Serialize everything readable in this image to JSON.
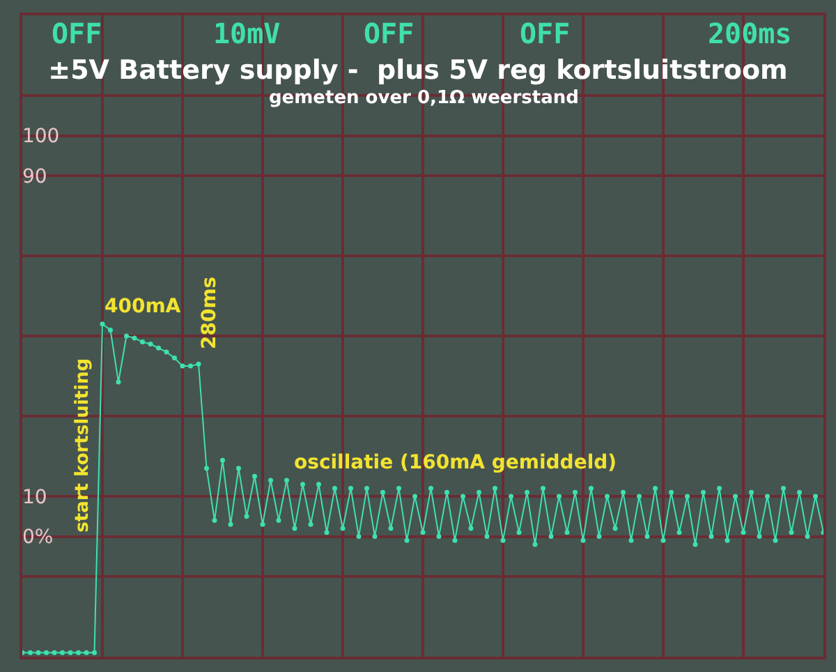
{
  "chart_data": {
    "type": "line",
    "title": "±5V Battery supply -  plus 5V reg kortsluitstroom",
    "subtitle": "gemeten over 0,1Ω weerstand",
    "annotations": [
      "OFF",
      "10mV",
      "OFF",
      "OFF",
      "200ms",
      "400mA",
      "280ms",
      "start kortsluiting",
      "oscillatie (160mA gemiddeld)"
    ],
    "categories": [
      null,
      null,
      null,
      null,
      null,
      null,
      null,
      null,
      null,
      null,
      null,
      null,
      null,
      null,
      null,
      null,
      null,
      null,
      null,
      null,
      null,
      null,
      null,
      null,
      null,
      null,
      null,
      null,
      null,
      null,
      null,
      null,
      null,
      null,
      null,
      null,
      null,
      null,
      null,
      null,
      null,
      null,
      null,
      null,
      null,
      null,
      null,
      null,
      null,
      null,
      null,
      null,
      null,
      null,
      null,
      null,
      null,
      null,
      null,
      null,
      null,
      null,
      null,
      null,
      null,
      null,
      null,
      null,
      null,
      null,
      null,
      null,
      null,
      null,
      null,
      null,
      null,
      null,
      null,
      null,
      null,
      null,
      null,
      null,
      null,
      null,
      null,
      null,
      null,
      null,
      null,
      null,
      null,
      null,
      null,
      null,
      null,
      null,
      null,
      null,
      null
    ],
    "series": [
      {
        "color": "#3fe0b0",
        "values": [
          -29,
          -29,
          -29,
          -29,
          -29,
          -29,
          -29,
          -29,
          -29,
          -29,
          53,
          51.5,
          38.5,
          50,
          49.5,
          48.5,
          48,
          47,
          46,
          44.5,
          42.5,
          42.5,
          43,
          17,
          4,
          19,
          3,
          17,
          5,
          15,
          3,
          14,
          4,
          14,
          2,
          13,
          3,
          13,
          1,
          12,
          2,
          12,
          0,
          12,
          0,
          11,
          2,
          12,
          -1,
          10,
          1,
          12,
          0,
          11,
          -1,
          10,
          2,
          11,
          0,
          12,
          -1,
          10,
          1,
          11,
          -2,
          12,
          0,
          10,
          1,
          11,
          -1,
          12,
          0,
          10,
          2,
          11,
          -1,
          10,
          0,
          12,
          -1,
          11,
          1,
          10,
          -2,
          11,
          0,
          12,
          -1,
          10,
          1,
          11,
          0,
          10,
          -1,
          12,
          1,
          11,
          0,
          10,
          1
        ]
      }
    ],
    "ylim": [
      -30,
      130
    ],
    "yticks": [
      {
        "value": -30,
        "label": null
      },
      {
        "value": -10,
        "label": null
      },
      {
        "value": 0,
        "label": "0%"
      },
      10,
      {
        "value": 30,
        "label": null
      },
      {
        "value": 50,
        "label": null
      },
      {
        "value": 70,
        "label": null
      },
      90,
      100,
      {
        "value": 110,
        "label": null
      },
      {
        "value": 130,
        "label": null
      }
    ],
    "grid": true,
    "tick_labels": "y",
    "marker": "circle"
  }
}
